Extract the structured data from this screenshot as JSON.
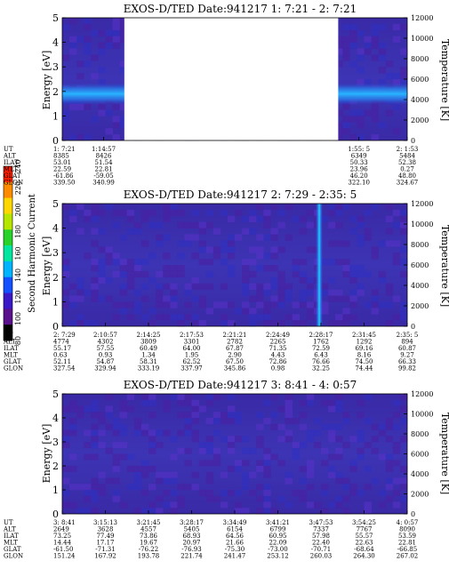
{
  "chart_data": [
    {
      "type": "heatmap",
      "title": "EXOS-D/TED   Date:941217  1: 7:21 - 2: 7:21",
      "ylabel": "Energy [eV]",
      "y2label": "Temperature [K]",
      "ylim": [
        0,
        5
      ],
      "y2lim": [
        0,
        12000
      ],
      "yticks": [
        "0",
        "1",
        "2",
        "3",
        "4",
        "5"
      ],
      "y2ticks": [
        "0",
        "2000",
        "4000",
        "6000",
        "8000",
        "10000",
        "12000"
      ],
      "data_gap": [
        0.18,
        0.8
      ],
      "heat_band": {
        "center_ev": 1.9,
        "half_width_ev": 0.45
      },
      "row_labels": [
        "UT",
        "ALT",
        "ILAT",
        "MLT",
        "GLAT",
        "GLON"
      ],
      "columns": [
        {
          "UT": "1: 7:21",
          "ALT": "8385",
          "ILAT": "53.01",
          "MLT": "22.59",
          "GLAT": "-61.86",
          "GLON": "339.50"
        },
        {
          "UT": "1:14:57",
          "ALT": "8426",
          "ILAT": "51.54",
          "MLT": "22.81",
          "GLAT": "-59.05",
          "GLON": "340.99"
        },
        {
          "UT": "1:55: 5",
          "ALT": "6349",
          "ILAT": "50.33",
          "MLT": "23.96",
          "GLAT": "46.20",
          "GLON": "322.10"
        },
        {
          "UT": "2: 1:53",
          "ALT": "5484",
          "ILAT": "52.38",
          "MLT": "0.27",
          "GLAT": "48.80",
          "GLON": "324.67"
        }
      ],
      "column_positions": [
        0,
        0.12,
        0.86,
        1.0
      ]
    },
    {
      "type": "heatmap",
      "title": "EXOS-D/TED   Date:941217  2: 7:29 - 2:35: 5",
      "ylabel": "Energy [eV]",
      "y2label": "Temperature [K]",
      "ylim": [
        0,
        5
      ],
      "y2lim": [
        0,
        12000
      ],
      "yticks": [
        "0",
        "1",
        "2",
        "3",
        "4",
        "5"
      ],
      "y2ticks": [
        "0",
        "2000",
        "4000",
        "6000",
        "8000",
        "10000",
        "12000"
      ],
      "spike_position": 0.745,
      "row_labels": [
        "UT",
        "ALT",
        "ILAT",
        "MLT",
        "GLAT",
        "GLON"
      ],
      "columns": [
        {
          "UT": "2: 7:29",
          "ALT": "4774",
          "ILAT": "55.17",
          "MLT": "0.63",
          "GLAT": "52.11",
          "GLON": "327.54"
        },
        {
          "UT": "2:10:57",
          "ALT": "4302",
          "ILAT": "57.55",
          "MLT": "0.93",
          "GLAT": "54.87",
          "GLON": "329.94"
        },
        {
          "UT": "2:14:25",
          "ALT": "3809",
          "ILAT": "60.49",
          "MLT": "1.34",
          "GLAT": "58.31",
          "GLON": "333.19"
        },
        {
          "UT": "2:17:53",
          "ALT": "3301",
          "ILAT": "64.00",
          "MLT": "1.95",
          "GLAT": "62.52",
          "GLON": "337.97"
        },
        {
          "UT": "2:21:21",
          "ALT": "2782",
          "ILAT": "67.87",
          "MLT": "2.90",
          "GLAT": "67.50",
          "GLON": "345.86"
        },
        {
          "UT": "2:24:49",
          "ALT": "2265",
          "ILAT": "71.35",
          "MLT": "4.43",
          "GLAT": "72.86",
          "GLON": "0.98"
        },
        {
          "UT": "2:28:17",
          "ALT": "1762",
          "ILAT": "72.59",
          "MLT": "6.43",
          "GLAT": "76.66",
          "GLON": "32.25"
        },
        {
          "UT": "2:31:45",
          "ALT": "1292",
          "ILAT": "69.16",
          "MLT": "8.16",
          "GLAT": "74.50",
          "GLON": "74.44"
        },
        {
          "UT": "2:35: 5",
          "ALT": "894",
          "ILAT": "60.87",
          "MLT": "9.27",
          "GLAT": "66.33",
          "GLON": "99.82"
        }
      ]
    },
    {
      "type": "heatmap",
      "title": "EXOS-D/TED   Date:941217  3: 8:41 - 4: 0:57",
      "ylabel": "Energy [eV]",
      "y2label": "Temperature [K]",
      "ylim": [
        0,
        5
      ],
      "y2lim": [
        0,
        12000
      ],
      "yticks": [
        "0",
        "1",
        "2",
        "3",
        "4",
        "5"
      ],
      "y2ticks": [
        "0",
        "2000",
        "4000",
        "6000",
        "8000",
        "10000",
        "12000"
      ],
      "row_labels": [
        "UT",
        "ALT",
        "ILAT",
        "MLT",
        "GLAT",
        "GLON"
      ],
      "columns": [
        {
          "UT": "3: 8:41",
          "ALT": "2649",
          "ILAT": "73.25",
          "MLT": "14.44",
          "GLAT": "-61.50",
          "GLON": "151.24"
        },
        {
          "UT": "3:15:13",
          "ALT": "3628",
          "ILAT": "77.49",
          "MLT": "17.17",
          "GLAT": "-71.31",
          "GLON": "167.92"
        },
        {
          "UT": "3:21:45",
          "ALT": "4557",
          "ILAT": "73.86",
          "MLT": "19.67",
          "GLAT": "-76.22",
          "GLON": "193.78"
        },
        {
          "UT": "3:28:17",
          "ALT": "5405",
          "ILAT": "68.93",
          "MLT": "20.97",
          "GLAT": "-76.93",
          "GLON": "221.74"
        },
        {
          "UT": "3:34:49",
          "ALT": "6154",
          "ILAT": "64.56",
          "MLT": "21.66",
          "GLAT": "-75.30",
          "GLON": "241.47"
        },
        {
          "UT": "3:41:21",
          "ALT": "6799",
          "ILAT": "60.95",
          "MLT": "22.09",
          "GLAT": "-73.00",
          "GLON": "253.12"
        },
        {
          "UT": "3:47:53",
          "ALT": "7337",
          "ILAT": "57.98",
          "MLT": "22.40",
          "GLAT": "-70.71",
          "GLON": "260.03"
        },
        {
          "UT": "3:54:25",
          "ALT": "7767",
          "ILAT": "55.57",
          "MLT": "22.63",
          "GLAT": "-68.64",
          "GLON": "264.30"
        },
        {
          "UT": "4: 0:57",
          "ALT": "8090",
          "ILAT": "53.59",
          "MLT": "22.81",
          "GLAT": "-66.85",
          "GLON": "267.02"
        }
      ]
    }
  ],
  "colorbar": {
    "label": "Second Harmonic Current",
    "ticks": [
      "80",
      "100",
      "120",
      "140",
      "160",
      "180",
      "200",
      "220",
      "240"
    ],
    "min": 80,
    "max": 240,
    "colors": [
      "#000000",
      "#5a0f8c",
      "#3a18c8",
      "#1450ff",
      "#00b4ff",
      "#00e6a0",
      "#28d228",
      "#b4e600",
      "#ffd700",
      "#ff8c00",
      "#ff1e00"
    ]
  }
}
